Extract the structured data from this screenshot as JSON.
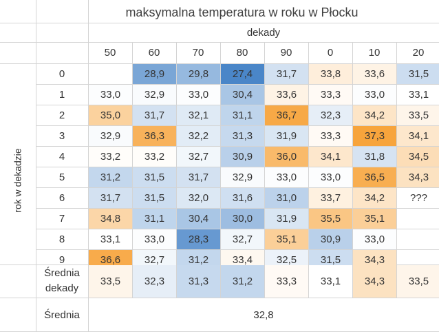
{
  "title": "maksymalna temperatura w roku w Płocku",
  "col_group_label": "dekady",
  "row_axis_label": "rok w dekadzie",
  "decades": [
    "50",
    "60",
    "70",
    "80",
    "90",
    "0",
    "10",
    "20"
  ],
  "years": [
    "0",
    "1",
    "2",
    "3",
    "4",
    "5",
    "6",
    "7",
    "8",
    "9"
  ],
  "values": [
    [
      "",
      "28,9",
      "29,8",
      "27,4",
      "31,7",
      "33,8",
      "33,6",
      "31,5"
    ],
    [
      "33,0",
      "32,9",
      "33,0",
      "30,4",
      "33,6",
      "33,3",
      "33,0",
      "33,1"
    ],
    [
      "35,0",
      "31,7",
      "32,1",
      "31,1",
      "36,7",
      "32,3",
      "34,2",
      "33,5"
    ],
    [
      "32,9",
      "36,3",
      "32,2",
      "31,3",
      "31,9",
      "33,3",
      "37,3",
      "34,1"
    ],
    [
      "33,2",
      "33,2",
      "32,7",
      "30,9",
      "36,0",
      "34,1",
      "31,8",
      "34,5"
    ],
    [
      "31,2",
      "31,5",
      "31,7",
      "32,9",
      "33,0",
      "33,0",
      "36,5",
      "34,3"
    ],
    [
      "31,7",
      "31,5",
      "32,0",
      "31,6",
      "31,0",
      "33,7",
      "34,2",
      "???"
    ],
    [
      "34,8",
      "31,1",
      "30,4",
      "30,0",
      "31,9",
      "35,5",
      "35,1",
      ""
    ],
    [
      "33,1",
      "33,0",
      "28,3",
      "32,7",
      "35,1",
      "30,9",
      "33,0",
      ""
    ],
    [
      "36,6",
      "32,7",
      "31,2",
      "33,4",
      "32,5",
      "31,5",
      "34,3",
      ""
    ]
  ],
  "decade_avg_label_line1": "Średnia",
  "decade_avg_label_line2": "dekady",
  "decade_avgs": [
    "33,5",
    "32,3",
    "31,3",
    "31,2",
    "33,3",
    "33,1",
    "34,3",
    "33,5"
  ],
  "overall_label": "Średnia",
  "overall_value": "32,8",
  "colors": {
    "cold": "#4a86c8",
    "neutral": "#ffffff",
    "hot": "#f7a43c",
    "grid": "#d4d4d4"
  }
}
